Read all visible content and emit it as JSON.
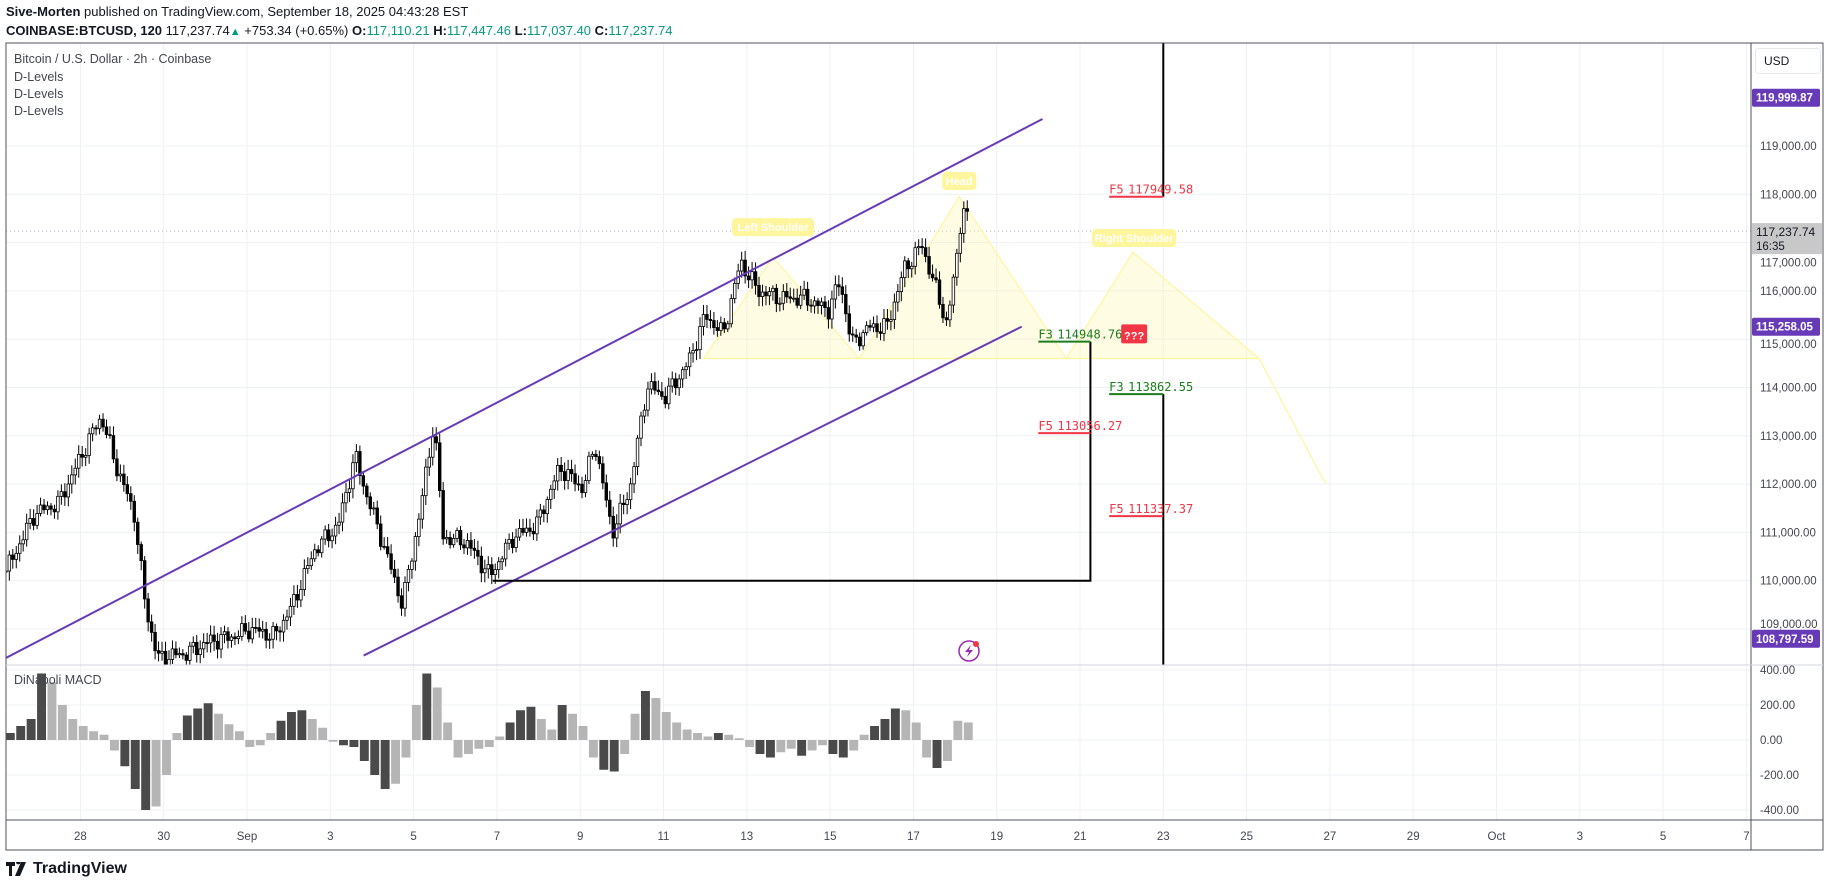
{
  "header": {
    "author": "Sive-Morten",
    "published": "published on TradingView.com, September 18, 2025 04:43:28 EST",
    "symbol": "COINBASE:BTCUSD, 120",
    "last": "117,237.74",
    "change": "+753.34 (+0.65%)",
    "open_label": "O:",
    "open": "117,110.21",
    "high_label": "H:",
    "high": "117,447.46",
    "low_label": "L:",
    "low": "117,037.40",
    "close_label": "C:",
    "close": "117,237.74"
  },
  "legend": {
    "title": "Bitcoin / U.S. Dollar · 2h · Coinbase",
    "indicators": [
      "D-Levels",
      "D-Levels",
      "D-Levels"
    ],
    "macd_title": "DiNapoli MACD"
  },
  "price_axis": {
    "currency": "USD",
    "ticks": [
      119000,
      118000,
      117000,
      116000,
      115000,
      114000,
      113000,
      112000,
      111000,
      110000,
      109000
    ],
    "tick_labels": [
      "119,000.00",
      "118,000.00",
      "117,000.00",
      "116,000.00",
      "115,000.00",
      "114,000.00",
      "113,000.00",
      "112,000.00",
      "111,000.00",
      "110,000.00",
      "109,000.00"
    ],
    "tags": [
      {
        "label": "119,999.87",
        "price": 119999.87,
        "color": "#673ab7"
      },
      {
        "label": "115,258.05",
        "price": 115258.05,
        "color": "#673ab7"
      },
      {
        "label": "108,797.59",
        "price": 108797.59,
        "color": "#673ab7"
      }
    ],
    "current": {
      "label": "117,237.74",
      "countdown": "16:35",
      "price": 117237.74,
      "color": "#c8c8c8"
    }
  },
  "macd_axis": {
    "ticks": [
      400,
      200,
      0,
      -200,
      -400
    ],
    "tick_labels": [
      "400.00",
      "200.00",
      "0.00",
      "-200.00",
      "-400.00"
    ]
  },
  "time_axis": {
    "ticks": [
      {
        "label": "28",
        "t": -4
      },
      {
        "label": "30",
        "t": -2
      },
      {
        "label": "Sep",
        "t": 0
      },
      {
        "label": "3",
        "t": 2
      },
      {
        "label": "5",
        "t": 4
      },
      {
        "label": "7",
        "t": 6
      },
      {
        "label": "9",
        "t": 8
      },
      {
        "label": "11",
        "t": 10
      },
      {
        "label": "13",
        "t": 12
      },
      {
        "label": "15",
        "t": 14
      },
      {
        "label": "17",
        "t": 16
      },
      {
        "label": "19",
        "t": 18
      },
      {
        "label": "21",
        "t": 20
      },
      {
        "label": "23",
        "t": 22
      },
      {
        "label": "25",
        "t": 24
      },
      {
        "label": "27",
        "t": 26
      },
      {
        "label": "29",
        "t": 28
      },
      {
        "label": "Oct",
        "t": 30
      },
      {
        "label": "3",
        "t": 32
      },
      {
        "label": "5",
        "t": 34
      },
      {
        "label": "7",
        "t": 36
      }
    ]
  },
  "chart_data": {
    "type": "candlestick",
    "title": "Bitcoin / U.S. Dollar · 2h · Coinbase",
    "interval": "2h",
    "time_unit": "days since Sep 1 2025",
    "ylim": [
      108400,
      120600
    ],
    "price_path": [
      [
        -5.79,
        110200
      ],
      [
        -5.09,
        111400
      ],
      [
        -4.53,
        111600
      ],
      [
        -3.69,
        113100
      ],
      [
        -3.5,
        113400
      ],
      [
        -3.13,
        112350
      ],
      [
        -2.71,
        111400
      ],
      [
        -2.43,
        109450
      ],
      [
        -2.15,
        108400
      ],
      [
        -1.45,
        108500
      ],
      [
        -0.89,
        108750
      ],
      [
        -0.33,
        108850
      ],
      [
        0.09,
        109000
      ],
      [
        0.65,
        108850
      ],
      [
        1.07,
        109450
      ],
      [
        1.63,
        110650
      ],
      [
        2.19,
        111150
      ],
      [
        2.6,
        112600
      ],
      [
        2.75,
        112100
      ],
      [
        3.31,
        110650
      ],
      [
        3.73,
        109500
      ],
      [
        4.15,
        111400
      ],
      [
        4.49,
        113300
      ],
      [
        4.71,
        110900
      ],
      [
        5.27,
        110800
      ],
      [
        5.83,
        110100
      ],
      [
        6.39,
        110900
      ],
      [
        6.95,
        111150
      ],
      [
        7.51,
        112350
      ],
      [
        8.07,
        111900
      ],
      [
        8.35,
        112850
      ],
      [
        8.77,
        111000
      ],
      [
        9.19,
        111900
      ],
      [
        9.61,
        114050
      ],
      [
        10.03,
        113800
      ],
      [
        10.59,
        114500
      ],
      [
        11.01,
        115500
      ],
      [
        11.43,
        115100
      ],
      [
        11.85,
        116600
      ],
      [
        12.27,
        116000
      ],
      [
        12.83,
        115850
      ],
      [
        13.39,
        115850
      ],
      [
        13.95,
        115600
      ],
      [
        14.24,
        116200
      ],
      [
        14.52,
        114900
      ],
      [
        14.94,
        115250
      ],
      [
        15.36,
        115250
      ],
      [
        15.78,
        116450
      ],
      [
        16.2,
        116950
      ],
      [
        16.48,
        116200
      ],
      [
        16.81,
        115300
      ],
      [
        17.04,
        116700
      ],
      [
        17.18,
        117800
      ],
      [
        17.37,
        117237.74
      ]
    ],
    "macd": {
      "name": "DiNapoli MACD",
      "start_t": -5.79,
      "step_days": 0.25,
      "values": [
        40,
        80,
        120,
        380,
        330,
        200,
        120,
        80,
        50,
        30,
        -60,
        -150,
        -280,
        -400,
        -380,
        -200,
        40,
        140,
        180,
        210,
        150,
        90,
        50,
        -40,
        -30,
        40,
        110,
        160,
        170,
        120,
        70,
        -10,
        -30,
        -40,
        -120,
        -200,
        -280,
        -250,
        -100,
        200,
        380,
        300,
        100,
        -100,
        -80,
        -50,
        -40,
        20,
        100,
        170,
        190,
        120,
        60,
        200,
        150,
        80,
        -100,
        -170,
        -180,
        -80,
        150,
        280,
        240,
        160,
        100,
        60,
        40,
        20,
        40,
        30,
        10,
        -40,
        -80,
        -100,
        -70,
        -50,
        -90,
        -60,
        -30,
        -80,
        -100,
        -60,
        30,
        80,
        120,
        180,
        170,
        100,
        -100,
        -160,
        -120,
        110,
        100
      ],
      "ylim": [
        -450,
        450
      ]
    },
    "annotations": {
      "channel_color": "#673ab7",
      "upper_channel": [
        [
          -5.79,
          108400
        ],
        [
          19.1,
          119560
        ]
      ],
      "lower_channel": [
        [
          2.8,
          108450
        ],
        [
          18.6,
          115260
        ]
      ],
      "pattern_labels": [
        "Left Shoulder",
        "Head",
        "Right Shoulder"
      ],
      "question": "???",
      "pattern_color": "#fff59d",
      "d_levels": [
        {
          "prefix": "F5",
          "value": "117949.58",
          "price": 117949.58,
          "t0": 20.7,
          "t1": 22.0,
          "color": "#f23645"
        },
        {
          "prefix": "F3",
          "value": "114948.76",
          "price": 114948.76,
          "t0": 19.0,
          "t1": 20.25,
          "color": "#1b7d1b"
        },
        {
          "prefix": "F3",
          "value": "113862.55",
          "price": 113862.55,
          "t0": 20.7,
          "t1": 22.0,
          "color": "#1b7d1b"
        },
        {
          "prefix": "F5",
          "value": "113056.27",
          "price": 113056.27,
          "t0": 19.0,
          "t1": 20.25,
          "color": "#f23645"
        },
        {
          "prefix": "F5",
          "value": "111337.37",
          "price": 111337.37,
          "t0": 20.7,
          "t1": 22.0,
          "color": "#f23645"
        }
      ]
    }
  },
  "footer": {
    "brand": "TradingView"
  }
}
